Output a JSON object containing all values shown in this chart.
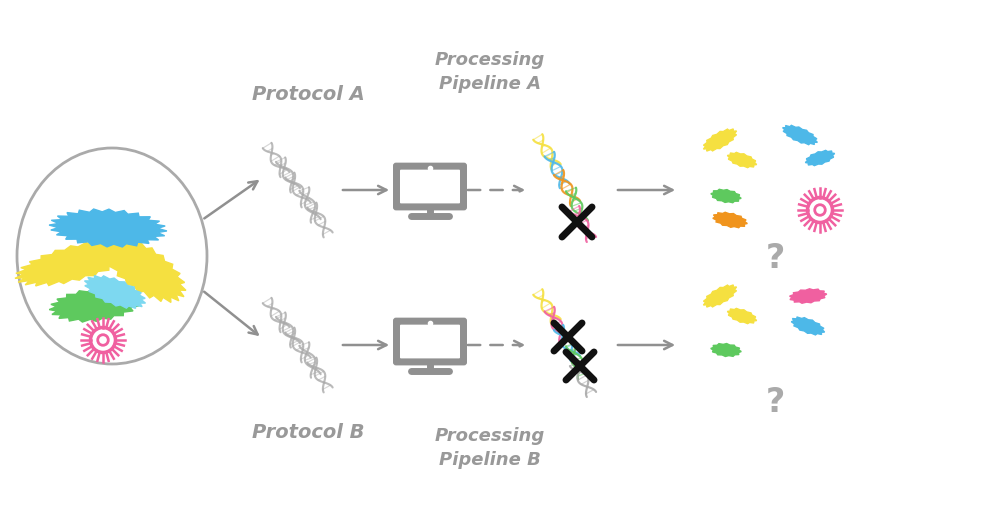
{
  "bg_color": "#ffffff",
  "label_color": "#999999",
  "label_protocol_a": "Protocol A",
  "label_protocol_b": "Protocol B",
  "pipeline_a": "Processing\nPipeline A",
  "pipeline_b": "Processing\nPipeline B",
  "monitor_color": "#909090",
  "arrow_color": "#909090",
  "dish_color": "#aaaaaa",
  "dna_gray": "#aaaaaa",
  "col_yellow": "#f5e040",
  "col_blue": "#4db8e8",
  "col_green": "#5ec95e",
  "col_pink": "#f060a0",
  "col_orange": "#f0941d",
  "col_lightblue": "#7dd8f0",
  "q_color": "#aaaaaa",
  "x_color": "#111111"
}
